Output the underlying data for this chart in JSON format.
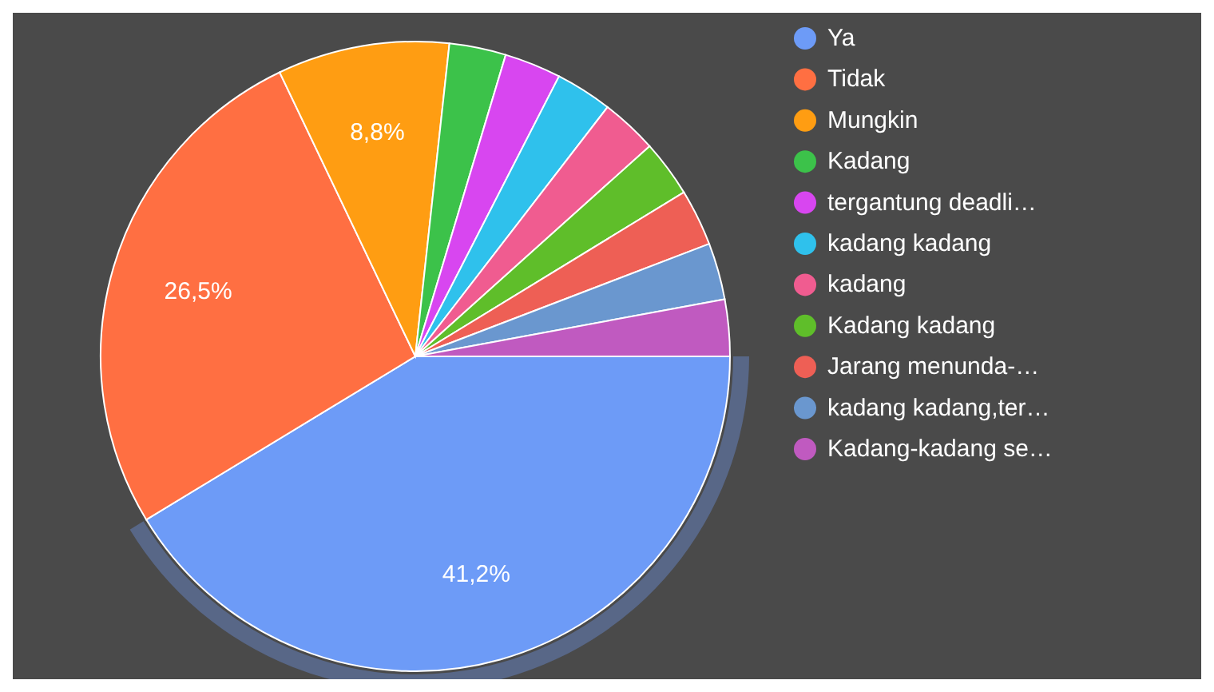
{
  "chart_data": {
    "type": "pie",
    "categories": [
      "Ya",
      "Tidak",
      "Mungkin",
      "Kadang",
      "tergantung deadli…",
      "kadang kadang",
      "kadang",
      "Kadang kadang",
      "Jarang menunda-…",
      "kadang kadang,ter…",
      "Kadang-kadang se…"
    ],
    "values": [
      41.2,
      26.5,
      8.8,
      2.9,
      2.9,
      2.9,
      2.9,
      2.9,
      2.9,
      2.9,
      2.9
    ],
    "colors": [
      "#6d9bf7",
      "#ff6f42",
      "#ff9d12",
      "#3cc24a",
      "#d846f0",
      "#2fc1ec",
      "#f05c90",
      "#5fbe2a",
      "#ee5f55",
      "#6a97cf",
      "#c05ac0"
    ],
    "value_labels": [
      "41,2%",
      "26,5%",
      "8,8%",
      null,
      null,
      null,
      null,
      null,
      null,
      null,
      null
    ],
    "legend": "right"
  }
}
